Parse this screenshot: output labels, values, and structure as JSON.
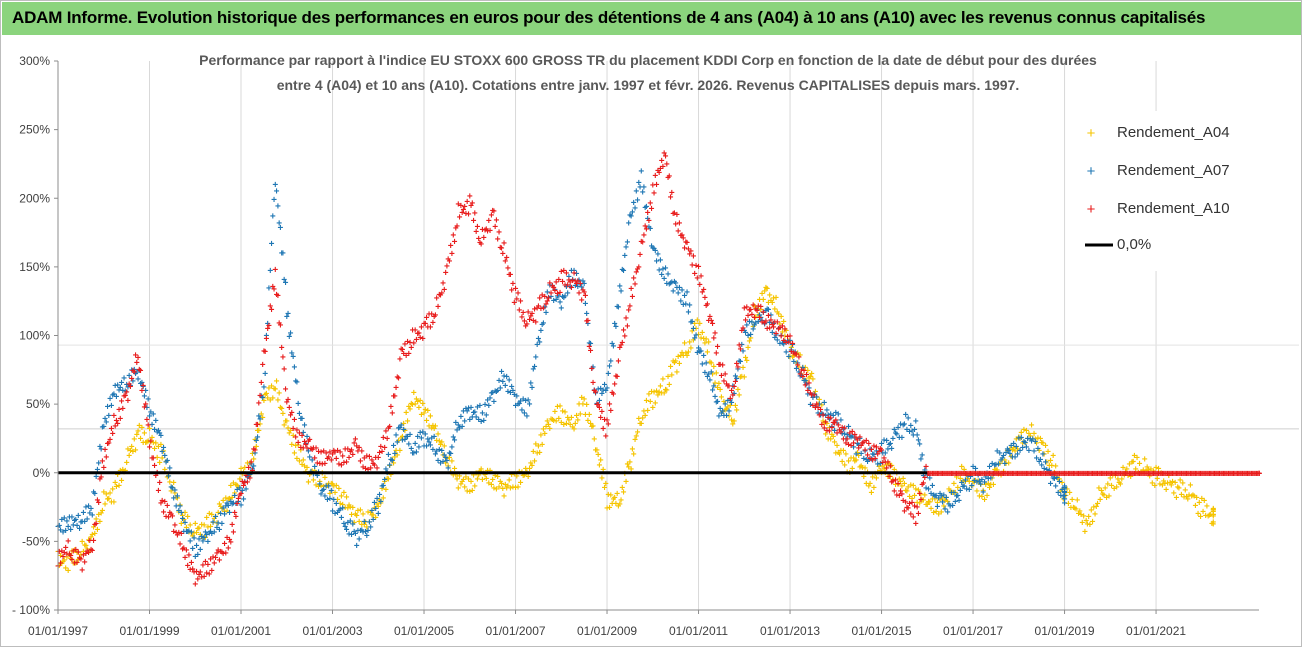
{
  "banner": {
    "title": "ADAM Informe. Evolution historique des performances en euros pour des détentions de 4 ans (A04) à 10 ans (A10) avec les revenus connus capitalisés",
    "color": "#8bd47d"
  },
  "chart_data": {
    "type": "scatter",
    "title_line1": "Performance par rapport à l'indice EU STOXX 600 GROSS TR  du placement KDDI Corp en fonction de la date de début pour des durées",
    "title_line2": "entre 4 (A04) et 10 ans (A10). Cotations entre janv. 1997 et févr. 2026. Revenus CAPITALISES depuis mars. 1997.",
    "xlabel": "",
    "ylabel": "",
    "xlim": [
      1997.0,
      2023.25
    ],
    "ylim": [
      -100,
      300
    ],
    "yticks": [
      -100,
      -50,
      0,
      50,
      100,
      150,
      200,
      250,
      300
    ],
    "ytick_labels": [
      "- 100%",
      "-50%",
      "0%",
      "50%",
      "100%",
      "150%",
      "200%",
      "250%",
      "300%"
    ],
    "xticks": [
      1997,
      1999,
      2001,
      2003,
      2005,
      2007,
      2009,
      2011,
      2013,
      2015,
      2017,
      2019,
      2021
    ],
    "xtick_labels": [
      "01/01/1997",
      "01/01/1999",
      "01/01/2001",
      "01/01/2003",
      "01/01/2005",
      "01/01/2007",
      "01/01/2009",
      "01/01/2011",
      "01/01/2013",
      "01/01/2015",
      "01/01/2017",
      "01/01/2019",
      "01/01/2021"
    ],
    "grid": "vertical",
    "marker": "+",
    "legend_position": "top-right",
    "series": [
      {
        "name": "Rendement_A04",
        "color": "#f5c400",
        "x": [
          1997.0,
          1997.25,
          1997.5,
          1997.75,
          1998.0,
          1998.25,
          1998.5,
          1998.75,
          1999.0,
          1999.25,
          1999.5,
          1999.75,
          2000.0,
          2000.25,
          2000.5,
          2000.75,
          2001.0,
          2001.25,
          2001.5,
          2001.75,
          2002.0,
          2002.25,
          2002.5,
          2002.75,
          2003.0,
          2003.25,
          2003.5,
          2003.75,
          2004.0,
          2004.25,
          2004.5,
          2004.75,
          2005.0,
          2005.25,
          2005.5,
          2005.75,
          2006.0,
          2006.25,
          2006.5,
          2006.75,
          2007.0,
          2007.25,
          2007.5,
          2007.75,
          2008.0,
          2008.25,
          2008.5,
          2008.75,
          2009.0,
          2009.25,
          2009.5,
          2009.75,
          2010.0,
          2010.25,
          2010.5,
          2010.75,
          2011.0,
          2011.25,
          2011.5,
          2011.75,
          2012.0,
          2012.25,
          2012.5,
          2012.75,
          2013.0,
          2013.25,
          2013.5,
          2013.75,
          2014.0,
          2014.25,
          2014.5,
          2014.75,
          2015.0,
          2015.25,
          2015.5,
          2015.75,
          2016.0,
          2016.25,
          2016.5,
          2016.75,
          2017.0,
          2017.25,
          2017.5,
          2017.75,
          2018.0,
          2018.25,
          2018.5,
          2018.75,
          2019.0,
          2019.25,
          2019.5,
          2019.75,
          2020.0,
          2020.25,
          2020.5,
          2020.75,
          2021.0,
          2021.25,
          2021.5,
          2021.75,
          2022.0,
          2022.25
        ],
        "y": [
          -62,
          -60,
          -55,
          -45,
          -20,
          -10,
          10,
          30,
          25,
          15,
          -10,
          -35,
          -45,
          -40,
          -30,
          -20,
          -5,
          5,
          50,
          60,
          30,
          10,
          -5,
          -10,
          -15,
          -25,
          -35,
          -40,
          -30,
          -5,
          20,
          50,
          40,
          25,
          5,
          -10,
          -15,
          -5,
          -10,
          -15,
          -10,
          -5,
          15,
          35,
          40,
          30,
          50,
          20,
          -20,
          -25,
          5,
          40,
          55,
          60,
          80,
          90,
          110,
          85,
          55,
          40,
          80,
          120,
          135,
          120,
          95,
          80,
          70,
          40,
          25,
          10,
          15,
          -5,
          10,
          5,
          -5,
          -10,
          -15,
          -20,
          -10,
          5,
          0,
          -10,
          5,
          15,
          30,
          35,
          25,
          10,
          -10,
          -20,
          -35,
          -15,
          -5,
          0,
          10,
          5,
          0,
          -5,
          -10,
          -15,
          -25,
          -30
        ]
      },
      {
        "name": "Rendement_A07",
        "color": "#1f77b4",
        "x": [
          1997.0,
          1997.25,
          1997.5,
          1997.75,
          1998.0,
          1998.25,
          1998.5,
          1998.75,
          1999.0,
          1999.25,
          1999.5,
          1999.75,
          2000.0,
          2000.25,
          2000.5,
          2000.75,
          2001.0,
          2001.25,
          2001.5,
          2001.75,
          2002.0,
          2002.25,
          2002.5,
          2002.75,
          2003.0,
          2003.25,
          2003.5,
          2003.75,
          2004.0,
          2004.25,
          2004.5,
          2004.75,
          2005.0,
          2005.25,
          2005.5,
          2005.75,
          2006.0,
          2006.25,
          2006.5,
          2006.75,
          2007.0,
          2007.25,
          2007.5,
          2007.75,
          2008.0,
          2008.25,
          2008.5,
          2008.75,
          2009.0,
          2009.25,
          2009.5,
          2009.75,
          2010.0,
          2010.25,
          2010.5,
          2010.75,
          2011.0,
          2011.25,
          2011.5,
          2011.75,
          2012.0,
          2012.25,
          2012.5,
          2012.75,
          2013.0,
          2013.25,
          2013.5,
          2013.75,
          2014.0,
          2014.25,
          2014.5,
          2014.75,
          2015.0,
          2015.25,
          2015.5,
          2015.75,
          2016.0,
          2016.25,
          2016.5,
          2016.75,
          2017.0,
          2017.25,
          2017.5,
          2017.75,
          2018.0,
          2018.25,
          2018.5,
          2018.75,
          2019.0
        ],
        "y": [
          -45,
          -42,
          -40,
          -30,
          30,
          55,
          60,
          70,
          40,
          20,
          -15,
          -40,
          -60,
          -50,
          -40,
          -25,
          -20,
          0,
          60,
          215,
          120,
          50,
          10,
          -10,
          -20,
          -35,
          -45,
          -40,
          -20,
          10,
          35,
          20,
          30,
          20,
          10,
          40,
          50,
          45,
          60,
          75,
          60,
          50,
          100,
          140,
          130,
          150,
          140,
          60,
          70,
          130,
          190,
          220,
          170,
          150,
          140,
          130,
          95,
          75,
          45,
          60,
          105,
          115,
          120,
          100,
          95,
          75,
          55,
          45,
          40,
          30,
          20,
          10,
          15,
          25,
          35,
          30,
          -10,
          -20,
          -25,
          -15,
          -5,
          -10,
          5,
          10,
          15,
          20,
          5,
          -10,
          -20
        ]
      },
      {
        "name": "Rendement_A10",
        "color": "#e81c1c",
        "x": [
          1997.0,
          1997.25,
          1997.5,
          1997.75,
          1998.0,
          1998.25,
          1998.5,
          1998.75,
          1999.0,
          1999.25,
          1999.5,
          1999.75,
          2000.0,
          2000.25,
          2000.5,
          2000.75,
          2001.0,
          2001.25,
          2001.5,
          2001.75,
          2002.0,
          2002.25,
          2002.5,
          2002.75,
          2003.0,
          2003.25,
          2003.5,
          2003.75,
          2004.0,
          2004.25,
          2004.5,
          2004.75,
          2005.0,
          2005.25,
          2005.5,
          2005.75,
          2006.0,
          2006.25,
          2006.5,
          2006.75,
          2007.0,
          2007.25,
          2007.5,
          2007.75,
          2008.0,
          2008.25,
          2008.5,
          2008.75,
          2009.0,
          2009.25,
          2009.5,
          2009.75,
          2010.0,
          2010.25,
          2010.5,
          2010.75,
          2011.0,
          2011.25,
          2011.5,
          2011.75,
          2012.0,
          2012.25,
          2012.5,
          2012.75,
          2013.0,
          2013.25,
          2013.5,
          2013.75,
          2014.0,
          2014.25,
          2014.5,
          2014.75,
          2015.0,
          2015.25,
          2015.5,
          2015.75,
          2016.0,
          2016.25,
          2016.5,
          2016.75,
          2017.0,
          2017.25,
          2017.5,
          2017.75,
          2018.0,
          2018.25,
          2018.5,
          2018.75,
          2019.0,
          2019.25,
          2019.5,
          2019.75,
          2020.0,
          2020.25,
          2020.5,
          2020.75,
          2021.0,
          2021.25,
          2021.5,
          2021.75,
          2022.0,
          2022.25,
          2022.5,
          2022.75,
          2023.0,
          2023.25
        ],
        "y": [
          -58,
          -55,
          -62,
          -50,
          15,
          40,
          60,
          90,
          30,
          -15,
          -30,
          -50,
          -70,
          -65,
          -55,
          -45,
          -5,
          10,
          90,
          150,
          60,
          30,
          25,
          15,
          20,
          15,
          25,
          10,
          15,
          40,
          90,
          100,
          110,
          120,
          150,
          190,
          200,
          170,
          190,
          160,
          130,
          110,
          120,
          130,
          140,
          140,
          130,
          50,
          30,
          80,
          120,
          160,
          200,
          230,
          180,
          160,
          140,
          110,
          70,
          50,
          110,
          115,
          105,
          100,
          90,
          70,
          50,
          30,
          30,
          20,
          20,
          10,
          10,
          -10,
          -25,
          -35,
          0,
          0,
          0,
          0,
          0,
          0,
          0,
          0,
          0,
          0,
          0,
          0,
          0,
          0,
          0,
          0,
          0,
          0,
          0,
          0,
          0,
          0,
          0,
          0,
          0,
          0,
          0,
          0,
          0,
          0
        ]
      },
      {
        "name": "0,0%",
        "color": "#000000",
        "x": [
          1997.0,
          2016.0
        ],
        "y": [
          0,
          0
        ]
      }
    ]
  }
}
